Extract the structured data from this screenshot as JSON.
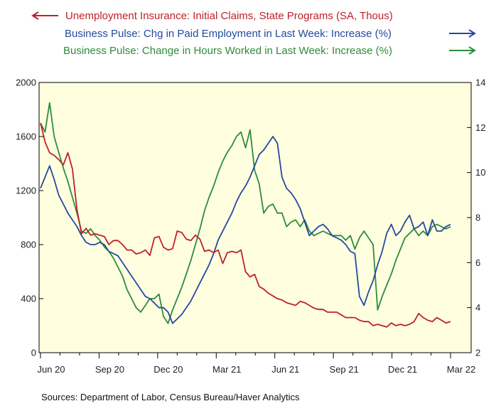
{
  "chart_data": {
    "type": "line",
    "title": "",
    "x_labels": [
      "Jun 20",
      "Sep 20",
      "Dec 20",
      "Mar 21",
      "Jun 21",
      "Sep 21",
      "Dec 21",
      "Mar 22"
    ],
    "left_axis": {
      "ylim": [
        0,
        2000
      ],
      "ticks": [
        0,
        400,
        800,
        1200,
        1600,
        2000
      ]
    },
    "right_axis": {
      "ylim": [
        2,
        14
      ],
      "ticks": [
        2,
        4,
        6,
        8,
        10,
        12,
        14
      ]
    },
    "background_color": "#FFFFE0",
    "grid": false,
    "legend_position": "top",
    "series": [
      {
        "name": "Unemployment Insurance: Initial Claims, State Programs (SA, Thous)",
        "axis": "left",
        "arrow": "left",
        "color": "#C0202A",
        "values": [
          1700,
          1560,
          1480,
          1460,
          1430,
          1390,
          1480,
          1360,
          1060,
          880,
          920,
          870,
          880,
          870,
          860,
          800,
          830,
          830,
          800,
          760,
          760,
          730,
          740,
          760,
          720,
          850,
          860,
          780,
          760,
          770,
          900,
          890,
          840,
          830,
          870,
          840,
          750,
          760,
          740,
          760,
          660,
          740,
          750,
          740,
          760,
          600,
          560,
          580,
          490,
          470,
          440,
          420,
          400,
          390,
          370,
          360,
          350,
          380,
          370,
          350,
          330,
          320,
          320,
          300,
          300,
          300,
          280,
          260,
          260,
          260,
          240,
          230,
          230,
          200,
          210,
          200,
          190,
          220,
          200,
          210,
          200,
          210,
          230,
          290,
          260,
          240,
          230,
          260,
          240,
          220,
          230
        ]
      },
      {
        "name": "Business Pulse: Chg in Paid Employment in Last Week: Increase (%)",
        "axis": "right",
        "arrow": "right",
        "color": "#2549A0",
        "values": [
          9.3,
          9.8,
          10.3,
          9.7,
          9.0,
          8.6,
          8.2,
          7.9,
          7.6,
          7.2,
          6.9,
          6.8,
          6.8,
          6.9,
          6.8,
          6.5,
          6.4,
          6.3,
          6.0,
          5.7,
          5.4,
          5.1,
          4.8,
          4.5,
          4.4,
          4.2,
          4.0,
          4.0,
          3.8,
          3.3,
          3.5,
          3.7,
          4.0,
          4.3,
          4.7,
          5.1,
          5.5,
          5.9,
          6.4,
          7.0,
          7.4,
          7.8,
          8.2,
          8.7,
          9.1,
          9.4,
          9.8,
          10.3,
          10.8,
          11.0,
          11.3,
          11.6,
          11.3,
          9.8,
          9.3,
          9.1,
          8.8,
          8.4,
          7.8,
          7.2,
          7.4,
          7.6,
          7.7,
          7.5,
          7.2,
          7.1,
          7.0,
          6.8,
          6.5,
          6.4,
          4.5,
          4.1,
          4.7,
          5.2,
          5.9,
          6.5,
          7.3,
          7.7,
          7.2,
          7.4,
          7.8,
          8.1,
          7.5,
          7.6,
          7.8,
          7.2,
          7.9,
          7.4,
          7.4,
          7.6,
          7.7
        ]
      },
      {
        "name": "Business Pulse: Change in Hours Worked in Last Week: Increase (%)",
        "axis": "right",
        "arrow": "right",
        "color": "#2E8B3A",
        "values": [
          12.2,
          11.8,
          13.1,
          11.6,
          10.9,
          10.2,
          9.6,
          8.9,
          8.2,
          7.4,
          7.3,
          7.5,
          7.2,
          7.0,
          6.7,
          6.5,
          6.2,
          5.8,
          5.4,
          4.8,
          4.4,
          4.0,
          3.8,
          4.1,
          4.4,
          4.4,
          4.6,
          3.6,
          3.3,
          3.9,
          4.4,
          4.9,
          5.5,
          6.1,
          6.8,
          7.5,
          8.3,
          8.9,
          9.4,
          10.0,
          10.5,
          10.9,
          11.2,
          11.6,
          11.8,
          11.1,
          11.9,
          10.1,
          9.5,
          8.2,
          8.5,
          8.6,
          8.2,
          8.2,
          7.6,
          7.8,
          7.9,
          7.6,
          7.9,
          7.4,
          7.2,
          7.3,
          7.4,
          7.3,
          7.2,
          7.2,
          7.2,
          7.0,
          7.2,
          6.6,
          7.1,
          7.4,
          7.1,
          6.8,
          3.9,
          4.5,
          5.0,
          5.5,
          6.1,
          6.6,
          7.1,
          7.3,
          7.5,
          7.2,
          7.4,
          7.2,
          7.6,
          7.7,
          7.6,
          7.5,
          7.6
        ]
      }
    ]
  },
  "source_text": "Sources:  Department of Labor, Census Bureau/Haver Analytics"
}
